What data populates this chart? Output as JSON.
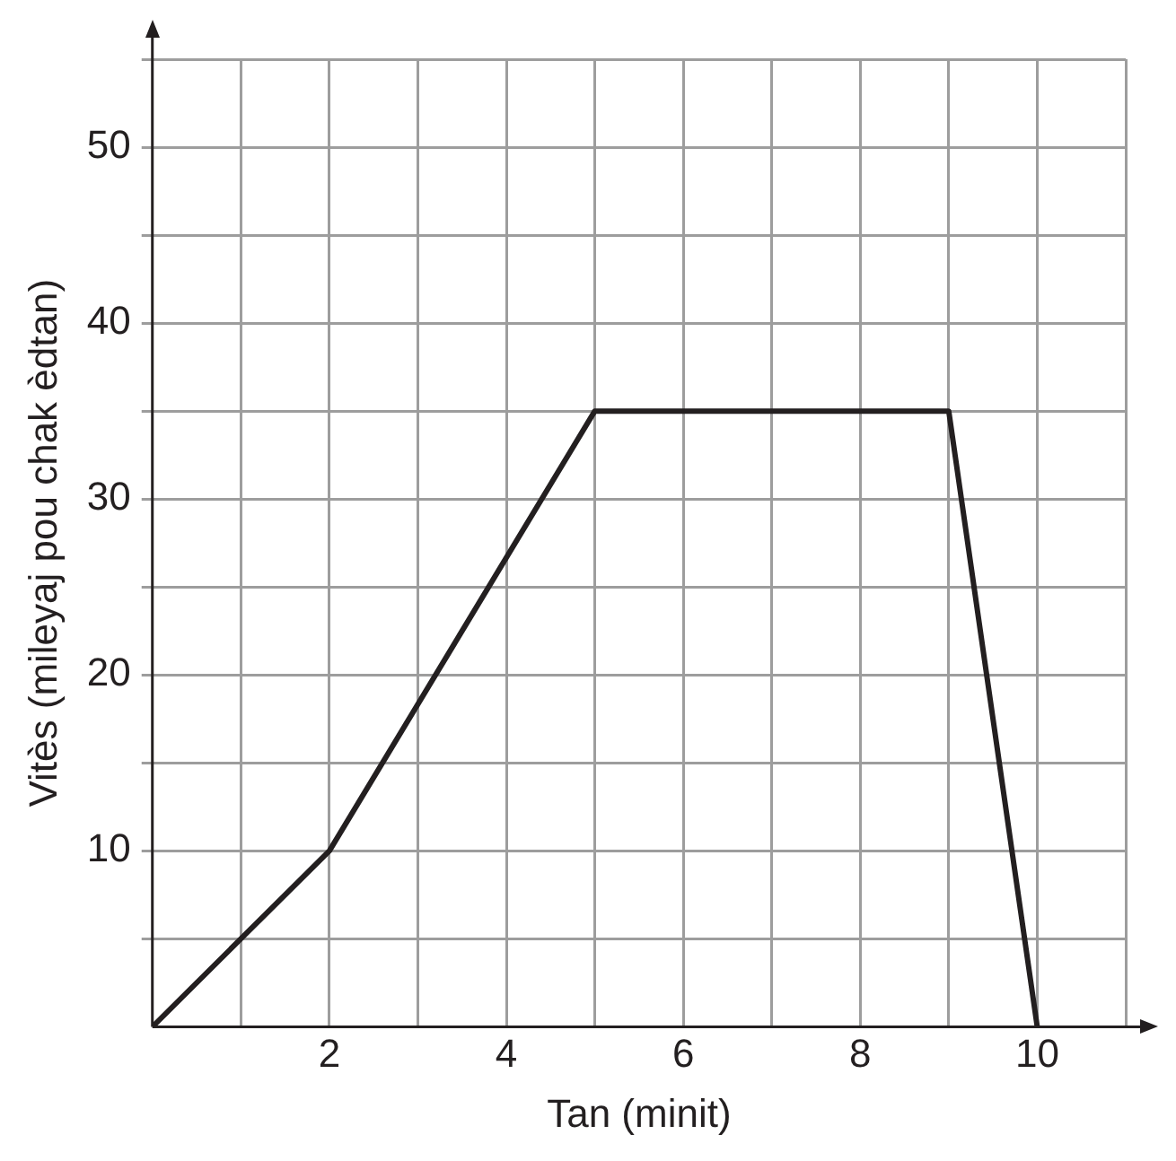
{
  "chart_data": {
    "type": "line",
    "xlabel": "Tan (minit)",
    "ylabel": "Vitès (mileyaj pou chak èdtan)",
    "x": [
      0,
      2,
      5,
      9,
      10
    ],
    "series": [
      {
        "color": "#231f20",
        "values": [
          0,
          10,
          35,
          35,
          0
        ]
      }
    ],
    "xlim": [
      0,
      11
    ],
    "xticks": [
      {
        "value": 1,
        "label": null
      },
      2,
      {
        "value": 3,
        "label": null
      },
      4,
      {
        "value": 5,
        "label": null
      },
      6,
      {
        "value": 7,
        "label": null
      },
      8,
      {
        "value": 9,
        "label": null
      },
      10,
      {
        "value": 11,
        "label": null
      }
    ],
    "ylim": [
      0,
      55
    ],
    "yticks": [
      {
        "value": 5,
        "label": null
      },
      10,
      {
        "value": 15,
        "label": null
      },
      20,
      {
        "value": 25,
        "label": null
      },
      30,
      {
        "value": 35,
        "label": null
      },
      40,
      {
        "value": 45,
        "label": null
      },
      50,
      {
        "value": 55,
        "label": null
      }
    ],
    "grid": true,
    "legend": false,
    "marker": "none",
    "line_style": "solid"
  }
}
